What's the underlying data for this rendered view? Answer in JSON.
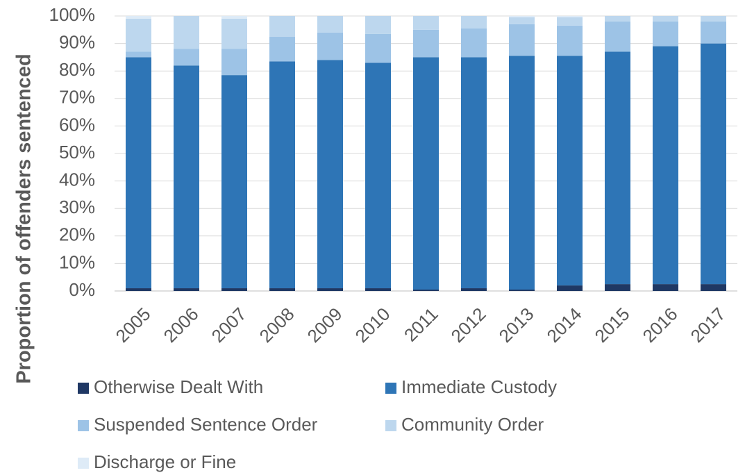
{
  "chart_data": {
    "type": "stacked_bar",
    "y_label": "Proportion of offenders sentenced",
    "categories": [
      "2005",
      "2006",
      "2007",
      "2008",
      "2009",
      "2010",
      "2011",
      "2012",
      "2013",
      "2014",
      "2015",
      "2016",
      "2017"
    ],
    "series": [
      {
        "name": "Otherwise Dealt With",
        "color": "#1f3864",
        "values": [
          1,
          1,
          1,
          1,
          1,
          1,
          0.5,
          1,
          0.5,
          2,
          2.5,
          2.5,
          2.5
        ]
      },
      {
        "name": "Immediate Custody",
        "color": "#2e75b6",
        "values": [
          84,
          81,
          77.5,
          82.5,
          83,
          82,
          84.5,
          84,
          85,
          83.5,
          84.5,
          86.5,
          87.5
        ]
      },
      {
        "name": "Suspended Sentence Order",
        "color": "#9dc3e6",
        "values": [
          2,
          6,
          9.5,
          9,
          10,
          10.5,
          10,
          10.5,
          11.5,
          11,
          11,
          9,
          8
        ]
      },
      {
        "name": "Community Order",
        "color": "#bdd7ee",
        "values": [
          12,
          12,
          11,
          7.5,
          6,
          6.5,
          5,
          4.5,
          2.5,
          3,
          2,
          2,
          2
        ]
      },
      {
        "name": "Discharge or Fine",
        "color": "#deebf7",
        "values": [
          1,
          0,
          1,
          0,
          0,
          0,
          0,
          0,
          0.5,
          0.5,
          0,
          0,
          0
        ]
      }
    ],
    "ylim": [
      0,
      100
    ],
    "yticks": [
      {
        "value": 0,
        "label": "0%"
      },
      {
        "value": 10,
        "label": "10%"
      },
      {
        "value": 20,
        "label": "20%"
      },
      {
        "value": 30,
        "label": "30%"
      },
      {
        "value": 40,
        "label": "40%"
      },
      {
        "value": 50,
        "label": "50%"
      },
      {
        "value": 60,
        "label": "60%"
      },
      {
        "value": 70,
        "label": "70%"
      },
      {
        "value": 80,
        "label": "80%"
      },
      {
        "value": 90,
        "label": "90%"
      },
      {
        "value": 100,
        "label": "100%"
      }
    ],
    "grid": true
  }
}
